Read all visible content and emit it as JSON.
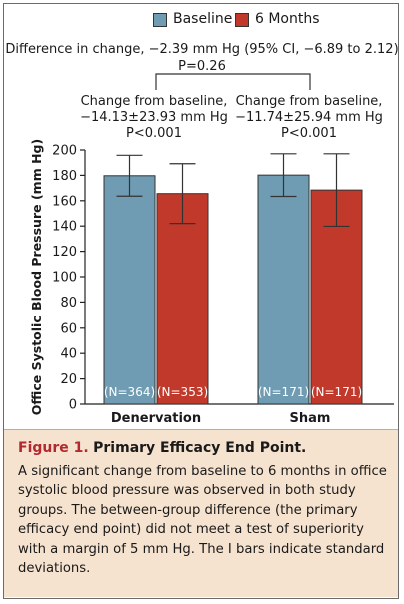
{
  "colors": {
    "baseline": "#6f9cb2",
    "six_months": "#c0392b",
    "caption_bg": "#f6e3cf",
    "figure_label": "#b2292e"
  },
  "chart_data": {
    "type": "bar",
    "categories": [
      "Denervation",
      "Sham"
    ],
    "series": [
      {
        "name": "Baseline",
        "values": [
          179.7,
          180.2
        ],
        "error": [
          16.1,
          16.8
        ],
        "n_label": [
          "(N=364)",
          "(N=171)"
        ]
      },
      {
        "name": "6 Months",
        "values": [
          165.6,
          168.4
        ],
        "error": [
          23.6,
          28.6
        ],
        "n_label": [
          "(N=353)",
          "(N=171)"
        ]
      }
    ],
    "ylabel": "Office Systolic Blood Pressure (mm Hg)",
    "ylim": [
      0,
      200
    ],
    "yticks": [
      "0",
      "20",
      "40",
      "60",
      "80",
      "100",
      "120",
      "140",
      "160",
      "180",
      "200"
    ],
    "legend_position": "top",
    "grid": false,
    "annotations": {
      "difference_line1": "Difference in change, −2.39  mm Hg (95% CI, −6.89 to 2.12)",
      "difference_line2": "P=0.26",
      "denervation_change": [
        "Change from baseline,",
        "−14.13±23.93 mm Hg",
        "P<0.001"
      ],
      "sham_change": [
        "Change from baseline,",
        "−11.74±25.94 mm Hg",
        "P<0.001"
      ]
    }
  },
  "caption": {
    "figure_label": "Figure 1.",
    "title": "Primary Efficacy End Point.",
    "body": "A significant change from baseline to 6 months in office systolic blood pressure was observed in both study groups. The between-group difference (the primary efficacy end point) did not meet a test of superiority with a margin of 5 mm Hg. The I bars indicate standard deviations."
  }
}
